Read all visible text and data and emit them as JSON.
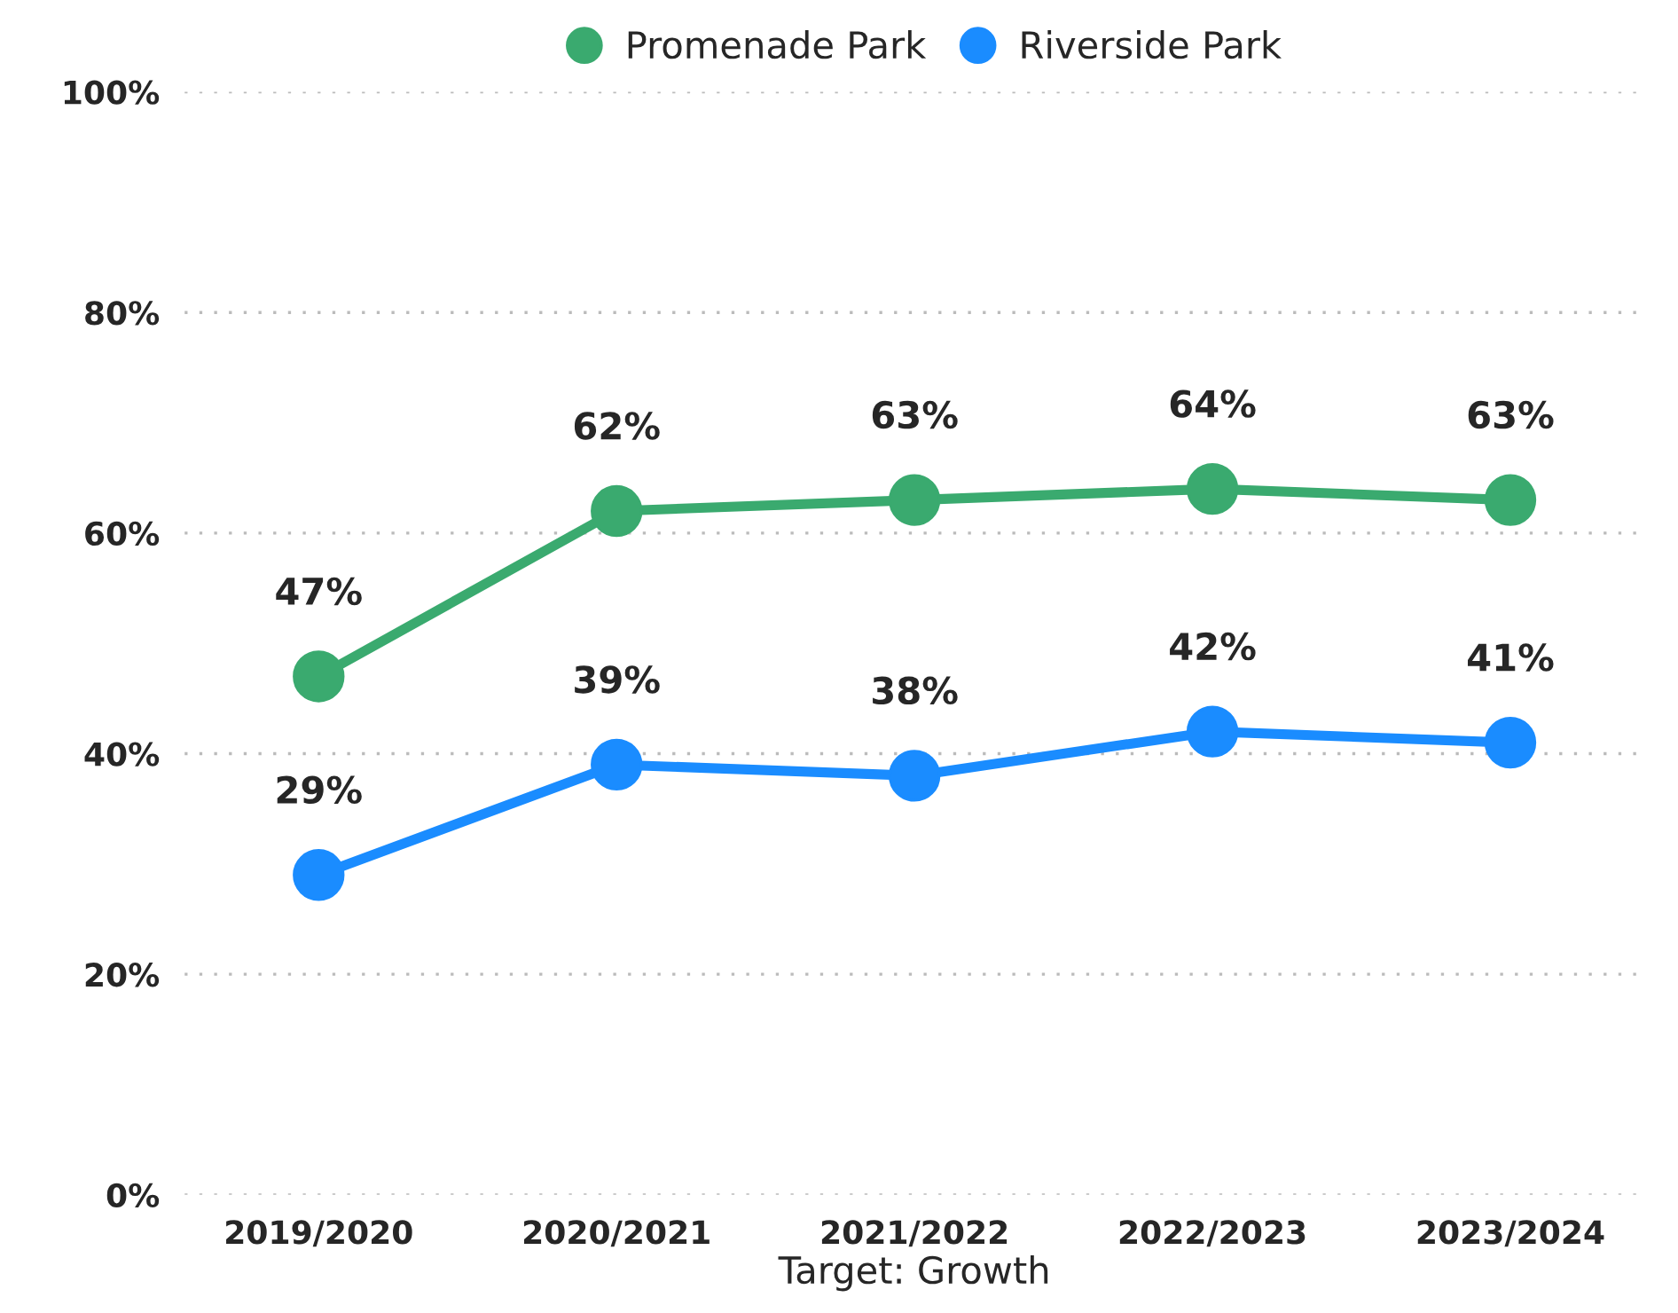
{
  "chart_data": {
    "type": "line",
    "xlabel": "Target: Growth",
    "categories": [
      "2019/2020",
      "2020/2021",
      "2021/2022",
      "2022/2023",
      "2023/2024"
    ],
    "series": [
      {
        "name": "Promenade Park",
        "color": "#3aaa6f",
        "values": [
          47,
          62,
          63,
          64,
          63
        ],
        "value_labels": [
          "47%",
          "62%",
          "63%",
          "64%",
          "63%"
        ]
      },
      {
        "name": "Riverside Park",
        "color": "#1a8cff",
        "values": [
          29,
          39,
          38,
          42,
          41
        ],
        "value_labels": [
          "29%",
          "39%",
          "38%",
          "42%",
          "41%"
        ]
      }
    ],
    "ylim": [
      0,
      100
    ],
    "yticks": [
      {
        "value": 0,
        "label": "0%"
      },
      {
        "value": 20,
        "label": "20%"
      },
      {
        "value": 40,
        "label": "40%"
      },
      {
        "value": 60,
        "label": "60%"
      },
      {
        "value": 80,
        "label": "80%"
      },
      {
        "value": 100,
        "label": "100%"
      }
    ],
    "grid": "y",
    "legend": "top",
    "marker": "circle",
    "line_style": "solid"
  }
}
